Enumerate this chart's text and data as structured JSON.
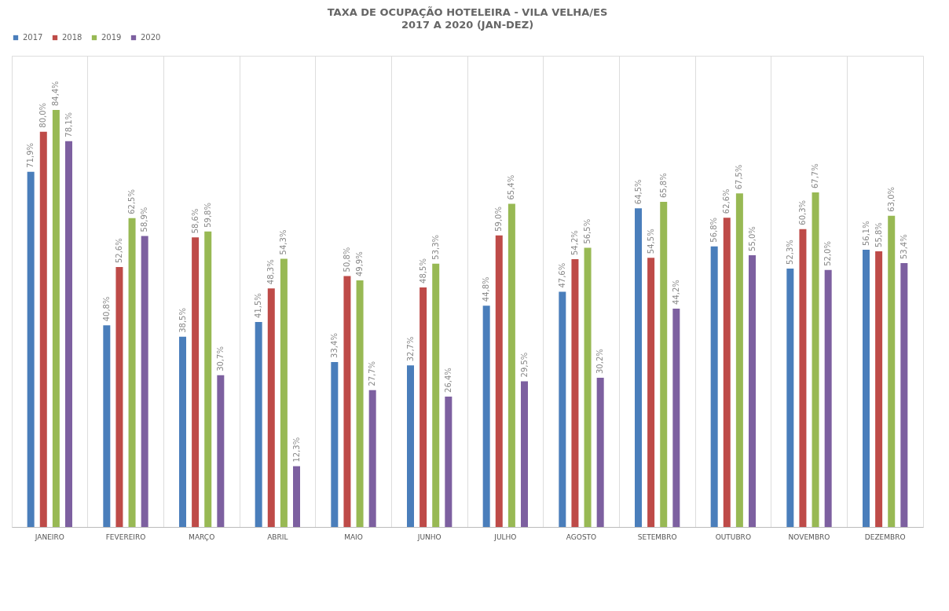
{
  "chart_data": {
    "type": "bar",
    "title": "TAXA DE OCUPAÇÃO HOTELEIRA - VILA VELHA/ES",
    "subtitle": "2017 A 2020 (JAN-DEZ)",
    "categories": [
      "JANEIRO",
      "FEVEREIRO",
      "MARÇO",
      "ABRIL",
      "MAIO",
      "JUNHO",
      "JULHO",
      "AGOSTO",
      "SETEMBRO",
      "OUTUBRO",
      "NOVEMBRO",
      "DEZEMBRO"
    ],
    "series": [
      {
        "name": "2017",
        "color": "#4a7ebb",
        "values": [
          71.9,
          40.8,
          38.5,
          41.5,
          33.4,
          32.7,
          44.8,
          47.6,
          64.5,
          56.8,
          52.3,
          56.1
        ],
        "value_labels": [
          "71,9%",
          "40,8%",
          "38,5%",
          "41,5%",
          "33,4%",
          "32,7%",
          "44,8%",
          "47,6%",
          "64,5%",
          "56,8%",
          "52,3%",
          "56,1%"
        ]
      },
      {
        "name": "2018",
        "color": "#be4b48",
        "values": [
          80.0,
          52.6,
          58.6,
          48.3,
          50.8,
          48.5,
          59.0,
          54.2,
          54.5,
          62.6,
          60.3,
          55.8
        ],
        "value_labels": [
          "80,0%",
          "52,6%",
          "58,6%",
          "48,3%",
          "50,8%",
          "48,5%",
          "59,0%",
          "54,2%",
          "54,5%",
          "62,6%",
          "60,3%",
          "55,8%"
        ]
      },
      {
        "name": "2019",
        "color": "#98b954",
        "values": [
          84.4,
          62.5,
          59.8,
          54.3,
          49.9,
          53.3,
          65.4,
          56.5,
          65.8,
          67.5,
          67.7,
          63.0
        ],
        "value_labels": [
          "84,4%",
          "62,5%",
          "59,8%",
          "54,3%",
          "49,9%",
          "53,3%",
          "65,4%",
          "56,5%",
          "65,8%",
          "67,5%",
          "67,7%",
          "63,0%"
        ]
      },
      {
        "name": "2020",
        "color": "#7d60a0",
        "values": [
          78.1,
          58.9,
          30.7,
          12.3,
          27.7,
          26.4,
          29.5,
          30.2,
          44.2,
          55.0,
          52.0,
          53.4
        ],
        "value_labels": [
          "78,1%",
          "58,9%",
          "30,7%",
          "12,3%",
          "27,7%",
          "26,4%",
          "29,5%",
          "30,2%",
          "44,2%",
          "55,0%",
          "52,0%",
          "53,4%"
        ]
      }
    ],
    "grid": "x",
    "legend": "top"
  }
}
